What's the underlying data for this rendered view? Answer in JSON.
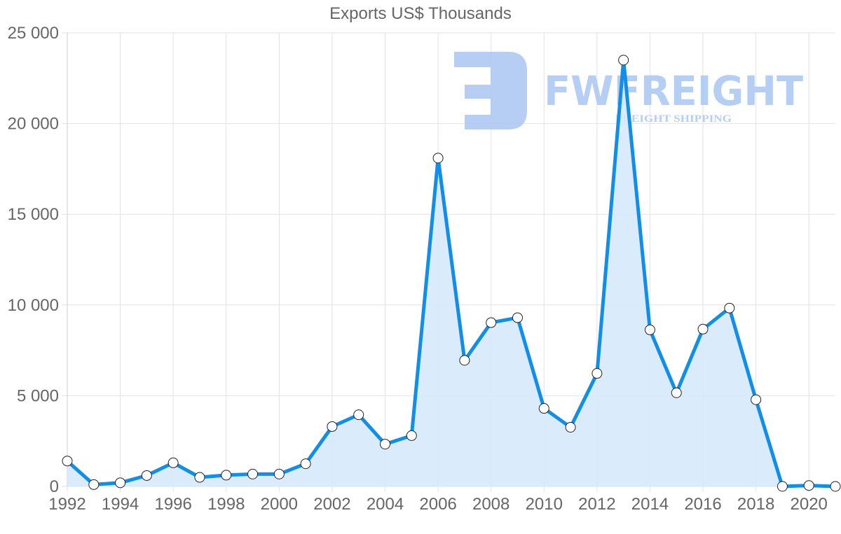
{
  "chart_data": {
    "type": "area",
    "title": "Exports US$ Thousands",
    "xlabel": "",
    "ylabel": "",
    "ylim": [
      0,
      25000
    ],
    "yticks": [
      0,
      5000,
      10000,
      15000,
      20000,
      25000
    ],
    "ytick_labels": [
      "0",
      "5 000",
      "10 000",
      "15 000",
      "20 000",
      "25 000"
    ],
    "xtick_labels": [
      "1992",
      "1994",
      "1996",
      "1998",
      "2000",
      "2002",
      "2004",
      "2006",
      "2008",
      "2010",
      "2012",
      "2014",
      "2016",
      "2018",
      "2020"
    ],
    "grid": true,
    "legend": null,
    "x": [
      1992,
      1993,
      1994,
      1995,
      1996,
      1997,
      1998,
      1999,
      2000,
      2001,
      2002,
      2003,
      2004,
      2005,
      2006,
      2007,
      2008,
      2009,
      2010,
      2011,
      2012,
      2013,
      2014,
      2015,
      2016,
      2017,
      2018,
      2019,
      2020,
      2021
    ],
    "series": [
      {
        "name": "Exports",
        "values": [
          1400,
          100,
          200,
          600,
          1300,
          500,
          620,
          680,
          680,
          1250,
          3300,
          3950,
          2330,
          2800,
          18100,
          6950,
          9030,
          9300,
          4300,
          3260,
          6230,
          23500,
          8630,
          5160,
          8670,
          9830,
          4780,
          0,
          50,
          0
        ]
      }
    ]
  },
  "colors": {
    "line": "#118ee8",
    "fill": "#d6eafb",
    "grid": "#e2e2e2",
    "text": "#666666",
    "watermark": "#a9c6f2"
  },
  "watermark": {
    "brand": "FWFREIGHT",
    "tagline": "FREIGHT SHIPPING"
  }
}
